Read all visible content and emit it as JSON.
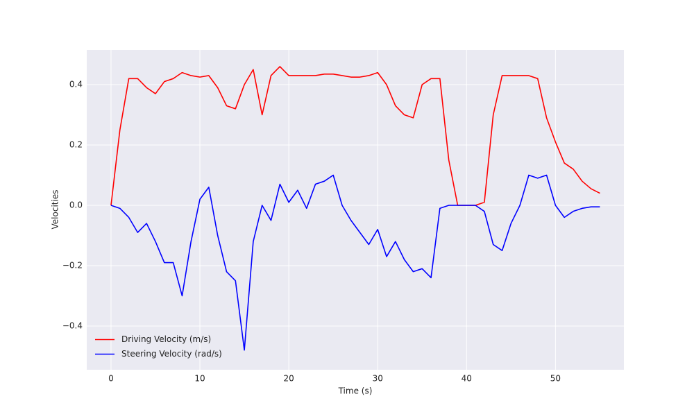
{
  "chart_data": {
    "type": "line",
    "xlabel": "Time (s)",
    "ylabel": "Velocities",
    "x": [
      0,
      1,
      2,
      3,
      4,
      5,
      6,
      7,
      8,
      9,
      10,
      11,
      12,
      13,
      14,
      15,
      16,
      17,
      18,
      19,
      20,
      21,
      22,
      23,
      24,
      25,
      26,
      27,
      28,
      29,
      30,
      31,
      32,
      33,
      34,
      35,
      36,
      37,
      38,
      39,
      40,
      41,
      42,
      43,
      44,
      45,
      46,
      47,
      48,
      49,
      50,
      51,
      52,
      53,
      54,
      55
    ],
    "series": [
      {
        "name": "Driving Velocity (m/s)",
        "color": "#ff0000",
        "values": [
          0,
          0.25,
          0.42,
          0.42,
          0.39,
          0.37,
          0.41,
          0.42,
          0.44,
          0.43,
          0.425,
          0.43,
          0.39,
          0.33,
          0.32,
          0.4,
          0.45,
          0.3,
          0.43,
          0.46,
          0.43,
          0.43,
          0.43,
          0.43,
          0.435,
          0.435,
          0.43,
          0.425,
          0.425,
          0.43,
          0.44,
          0.4,
          0.33,
          0.3,
          0.29,
          0.4,
          0.42,
          0.42,
          0.15,
          0,
          0,
          0,
          0.01,
          0.3,
          0.43,
          0.43,
          0.43,
          0.43,
          0.42,
          0.29,
          0.21,
          0.14,
          0.12,
          0.08,
          0.055,
          0.04
        ]
      },
      {
        "name": "Steering Velocity (rad/s)",
        "color": "#0000ff",
        "values": [
          0,
          -0.01,
          -0.04,
          -0.09,
          -0.06,
          -0.12,
          -0.19,
          -0.19,
          -0.3,
          -0.12,
          0.02,
          0.06,
          -0.1,
          -0.22,
          -0.25,
          -0.48,
          -0.12,
          0,
          -0.05,
          0.07,
          0.01,
          0.05,
          -0.01,
          0.07,
          0.08,
          0.1,
          0,
          -0.05,
          -0.09,
          -0.13,
          -0.08,
          -0.17,
          -0.12,
          -0.18,
          -0.22,
          -0.21,
          -0.24,
          -0.01,
          0,
          0,
          0,
          0,
          -0.02,
          -0.13,
          -0.15,
          -0.06,
          0,
          0.1,
          0.09,
          0.1,
          0,
          -0.04,
          -0.02,
          -0.01,
          -0.005,
          -0.005
        ]
      }
    ],
    "xlim": [
      -2.73,
      57.7
    ],
    "ylim": [
      -0.545,
      0.515
    ],
    "xticks": [
      0,
      10,
      20,
      30,
      40,
      50
    ],
    "yticks": [
      {
        "value": -0.4,
        "label": "−0.4"
      },
      {
        "value": -0.2,
        "label": "−0.2"
      },
      {
        "value": 0,
        "label": "0.0"
      },
      {
        "value": 0.2,
        "label": "0.2"
      },
      {
        "value": 0.4,
        "label": "0.4"
      }
    ],
    "grid": true,
    "legend": "lower left"
  }
}
